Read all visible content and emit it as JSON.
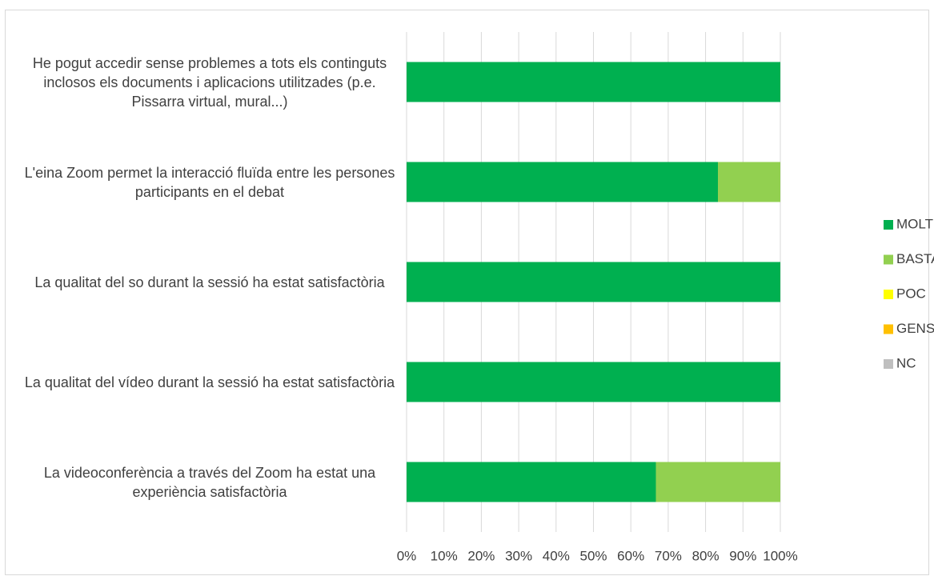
{
  "chart_data": {
    "type": "stacked_barh",
    "categories": [
      "He pogut accedir sense problemes a tots els continguts inclosos els documents i aplicacions utilitzades (p.e. Pissarra virtual, mural...)",
      "L'eina Zoom permet la interacció fluïda entre les persones participants en el debat",
      "La qualitat del so durant la sessió ha estat satisfactòria",
      "La qualitat del vídeo durant la sessió ha estat satisfactòria",
      "La videoconferència a través del Zoom ha estat una experiència satisfactòria"
    ],
    "series": [
      {
        "name": "MOLT",
        "color": "#00b050",
        "values": [
          100,
          83.3,
          100,
          100,
          66.7
        ]
      },
      {
        "name": "BASTANT",
        "color": "#92d050",
        "values": [
          0,
          16.7,
          0,
          0,
          33.3
        ]
      },
      {
        "name": "POC",
        "color": "#ffff00",
        "values": [
          0,
          0,
          0,
          0,
          0
        ]
      },
      {
        "name": "GENS",
        "color": "#ffc000",
        "values": [
          0,
          0,
          0,
          0,
          0
        ]
      },
      {
        "name": "NC",
        "color": "#bfbfbf",
        "values": [
          0,
          0,
          0,
          0,
          0
        ]
      }
    ],
    "xlim": [
      0,
      100
    ],
    "xticks": [
      {
        "value": 0,
        "label": "0%"
      },
      {
        "value": 10,
        "label": "10%"
      },
      {
        "value": 20,
        "label": "20%"
      },
      {
        "value": 30,
        "label": "30%"
      },
      {
        "value": 40,
        "label": "40%"
      },
      {
        "value": 50,
        "label": "50%"
      },
      {
        "value": 60,
        "label": "60%"
      },
      {
        "value": 70,
        "label": "70%"
      },
      {
        "value": 80,
        "label": "80%"
      },
      {
        "value": 90,
        "label": "90%"
      },
      {
        "value": 100,
        "label": "100%"
      }
    ],
    "grid": true,
    "legend": "right"
  }
}
